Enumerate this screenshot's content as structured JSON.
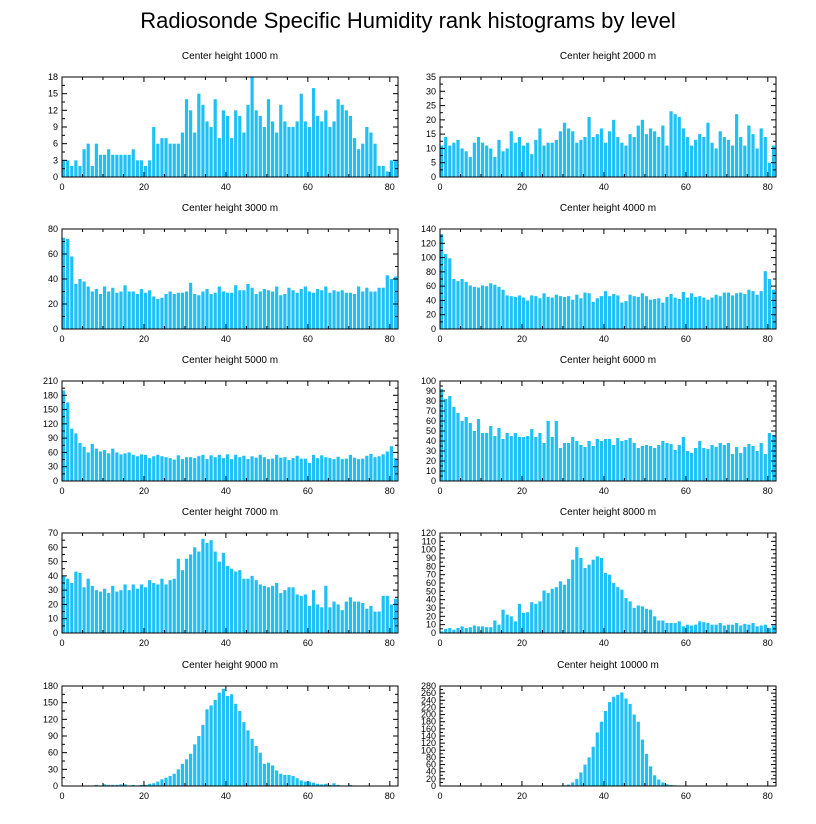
{
  "title": "Radiosonde Specific Humidity rank histograms by level",
  "style": {
    "bar_color": "#1ec0f6",
    "axis_color": "#000000"
  },
  "chart_data": [
    {
      "type": "bar",
      "title": "Center height 1000 m",
      "xlim": [
        0,
        82
      ],
      "ylim": [
        0,
        18
      ],
      "xticks": [
        0,
        20,
        40,
        60,
        80
      ],
      "yticks": [
        0,
        3,
        6,
        9,
        12,
        15,
        18
      ],
      "values": [
        3,
        3,
        2,
        3,
        2,
        5,
        6,
        2,
        6,
        4,
        4,
        5,
        4,
        4,
        4,
        4,
        4,
        5,
        3,
        3,
        2,
        3,
        9,
        6,
        7,
        7,
        6,
        6,
        6,
        8,
        14,
        12,
        8,
        15,
        13,
        10,
        9,
        14,
        7,
        12,
        11,
        7,
        12,
        11,
        8,
        13,
        18,
        12,
        11,
        9,
        14,
        10,
        8,
        13,
        10,
        9,
        9,
        10,
        15,
        10,
        9,
        16,
        11,
        10,
        12,
        9,
        10,
        14,
        13,
        12,
        11,
        7,
        5,
        6,
        9,
        8,
        6,
        2,
        2,
        1,
        3,
        3
      ]
    },
    {
      "type": "bar",
      "title": "Center height 2000 m",
      "xlim": [
        0,
        82
      ],
      "ylim": [
        0,
        35
      ],
      "xticks": [
        0,
        20,
        40,
        60,
        80
      ],
      "yticks": [
        0,
        5,
        10,
        15,
        20,
        25,
        30,
        35
      ],
      "values": [
        11,
        14,
        11,
        12,
        13,
        10,
        9,
        7,
        12,
        14,
        12,
        11,
        10,
        7,
        13,
        9,
        10,
        16,
        12,
        14,
        11,
        12,
        8,
        13,
        17,
        11,
        12,
        12,
        13,
        16,
        19,
        17,
        16,
        12,
        13,
        14,
        21,
        14,
        15,
        17,
        12,
        16,
        20,
        14,
        12,
        11,
        15,
        14,
        18,
        20,
        15,
        17,
        16,
        14,
        18,
        11,
        23,
        22,
        21,
        17,
        14,
        11,
        13,
        15,
        14,
        19,
        12,
        10,
        16,
        14,
        13,
        11,
        22,
        14,
        11,
        18,
        15,
        10,
        17,
        14,
        5,
        11
      ]
    },
    {
      "type": "bar",
      "title": "Center height 3000 m",
      "xlim": [
        0,
        82
      ],
      "ylim": [
        0,
        80
      ],
      "xticks": [
        0,
        20,
        40,
        60,
        80
      ],
      "yticks": [
        0,
        20,
        40,
        60,
        80
      ],
      "values": [
        73,
        72,
        58,
        36,
        40,
        38,
        34,
        30,
        32,
        28,
        34,
        30,
        33,
        29,
        30,
        35,
        30,
        30,
        28,
        32,
        29,
        31,
        26,
        24,
        25,
        28,
        30,
        28,
        29,
        29,
        30,
        37,
        28,
        27,
        30,
        32,
        28,
        29,
        34,
        30,
        29,
        29,
        35,
        31,
        31,
        36,
        33,
        28,
        30,
        32,
        31,
        30,
        34,
        27,
        28,
        33,
        31,
        29,
        32,
        34,
        30,
        29,
        32,
        31,
        34,
        29,
        31,
        30,
        31,
        29,
        29,
        28,
        34,
        30,
        33,
        30,
        30,
        33,
        33,
        43,
        40,
        42
      ]
    },
    {
      "type": "bar",
      "title": "Center height 4000 m",
      "xlim": [
        0,
        82
      ],
      "ylim": [
        0,
        140
      ],
      "xticks": [
        0,
        20,
        40,
        60,
        80
      ],
      "yticks": [
        0,
        20,
        40,
        60,
        80,
        100,
        120,
        140
      ],
      "values": [
        133,
        105,
        99,
        70,
        67,
        70,
        66,
        61,
        59,
        58,
        61,
        60,
        64,
        62,
        59,
        55,
        47,
        46,
        45,
        47,
        44,
        40,
        47,
        46,
        43,
        50,
        45,
        44,
        48,
        46,
        45,
        46,
        41,
        48,
        43,
        51,
        50,
        38,
        43,
        46,
        53,
        46,
        49,
        47,
        37,
        39,
        48,
        46,
        45,
        50,
        46,
        41,
        42,
        43,
        37,
        45,
        49,
        44,
        42,
        52,
        44,
        50,
        45,
        46,
        44,
        41,
        44,
        48,
        46,
        51,
        51,
        47,
        50,
        51,
        49,
        55,
        53,
        48,
        53,
        81,
        70,
        55
      ]
    },
    {
      "type": "bar",
      "title": "Center height 5000 m",
      "xlim": [
        0,
        82
      ],
      "ylim": [
        0,
        210
      ],
      "xticks": [
        0,
        20,
        40,
        60,
        80
      ],
      "yticks": [
        0,
        30,
        60,
        90,
        120,
        150,
        180,
        210
      ],
      "values": [
        190,
        165,
        110,
        100,
        80,
        72,
        60,
        78,
        68,
        62,
        65,
        58,
        68,
        60,
        56,
        58,
        60,
        55,
        52,
        56,
        55,
        48,
        52,
        55,
        52,
        50,
        48,
        45,
        54,
        46,
        50,
        50,
        48,
        52,
        55,
        46,
        54,
        50,
        55,
        48,
        56,
        46,
        55,
        50,
        53,
        46,
        52,
        49,
        55,
        50,
        46,
        47,
        55,
        49,
        50,
        44,
        48,
        53,
        47,
        47,
        38,
        55,
        48,
        54,
        50,
        48,
        46,
        51,
        46,
        47,
        55,
        49,
        46,
        47,
        53,
        57,
        50,
        52,
        56,
        62,
        73,
        48
      ]
    },
    {
      "type": "bar",
      "title": "Center height 6000 m",
      "xlim": [
        0,
        82
      ],
      "ylim": [
        0,
        100
      ],
      "xticks": [
        0,
        20,
        40,
        60,
        80
      ],
      "yticks": [
        0,
        10,
        20,
        30,
        40,
        50,
        60,
        70,
        80,
        90,
        100
      ],
      "values": [
        92,
        82,
        85,
        74,
        68,
        60,
        64,
        58,
        50,
        62,
        48,
        48,
        55,
        45,
        53,
        42,
        48,
        45,
        48,
        44,
        44,
        45,
        52,
        44,
        48,
        38,
        60,
        44,
        60,
        33,
        38,
        38,
        44,
        40,
        36,
        34,
        40,
        35,
        42,
        40,
        42,
        42,
        36,
        43,
        40,
        41,
        43,
        38,
        33,
        35,
        36,
        35,
        33,
        36,
        40,
        38,
        37,
        31,
        36,
        44,
        30,
        28,
        33,
        40,
        33,
        32,
        36,
        34,
        38,
        36,
        38,
        27,
        34,
        28,
        34,
        37,
        35,
        30,
        38,
        27,
        48,
        46
      ]
    },
    {
      "type": "bar",
      "title": "Center height 7000 m",
      "xlim": [
        0,
        82
      ],
      "ylim": [
        0,
        70
      ],
      "xticks": [
        0,
        20,
        40,
        60,
        80
      ],
      "yticks": [
        0,
        10,
        20,
        30,
        40,
        50,
        60,
        70
      ],
      "values": [
        40,
        38,
        35,
        43,
        42,
        32,
        38,
        33,
        30,
        29,
        31,
        28,
        33,
        29,
        30,
        34,
        30,
        34,
        31,
        34,
        32,
        37,
        35,
        34,
        38,
        34,
        37,
        38,
        52,
        44,
        52,
        55,
        60,
        57,
        66,
        63,
        65,
        57,
        50,
        56,
        47,
        45,
        43,
        44,
        38,
        38,
        40,
        37,
        34,
        33,
        32,
        33,
        35,
        28,
        30,
        32,
        32,
        27,
        26,
        27,
        19,
        30,
        20,
        18,
        33,
        18,
        22,
        20,
        16,
        22,
        25,
        22,
        22,
        21,
        17,
        19,
        15,
        15,
        26,
        26,
        20,
        24
      ]
    },
    {
      "type": "bar",
      "title": "Center height 8000 m",
      "xlim": [
        0,
        82
      ],
      "ylim": [
        0,
        120
      ],
      "xticks": [
        0,
        20,
        40,
        60,
        80
      ],
      "yticks": [
        0,
        10,
        20,
        30,
        40,
        50,
        60,
        70,
        80,
        90,
        100,
        110,
        120
      ],
      "values": [
        2,
        5,
        6,
        4,
        6,
        8,
        6,
        7,
        9,
        8,
        8,
        7,
        7,
        15,
        10,
        28,
        22,
        20,
        14,
        35,
        24,
        25,
        37,
        35,
        38,
        51,
        48,
        53,
        55,
        62,
        58,
        65,
        88,
        103,
        90,
        78,
        82,
        88,
        92,
        90,
        72,
        70,
        60,
        55,
        52,
        42,
        38,
        30,
        33,
        32,
        29,
        28,
        20,
        15,
        15,
        12,
        12,
        12,
        14,
        8,
        10,
        9,
        10,
        14,
        13,
        12,
        10,
        10,
        12,
        9,
        10,
        10,
        12,
        9,
        11,
        10,
        12,
        8,
        9,
        10,
        6,
        9
      ]
    },
    {
      "type": "bar",
      "title": "Center height 9000 m",
      "xlim": [
        0,
        82
      ],
      "ylim": [
        0,
        180
      ],
      "xticks": [
        0,
        20,
        40,
        60,
        80
      ],
      "yticks": [
        0,
        30,
        60,
        90,
        120,
        150,
        180
      ],
      "values": [
        0,
        0,
        0,
        0,
        0,
        0,
        0,
        0,
        2,
        1,
        3,
        2,
        2,
        2,
        3,
        3,
        1,
        2,
        1,
        2,
        2,
        4,
        5,
        8,
        12,
        15,
        18,
        22,
        30,
        40,
        48,
        58,
        75,
        90,
        110,
        138,
        145,
        155,
        168,
        175,
        162,
        165,
        148,
        135,
        115,
        100,
        85,
        72,
        60,
        40,
        42,
        37,
        28,
        22,
        20,
        20,
        18,
        14,
        10,
        8,
        8,
        6,
        4,
        3,
        4,
        2,
        5,
        2,
        1,
        1,
        2,
        1,
        0,
        0,
        1,
        0,
        0,
        0,
        0,
        0,
        0,
        0
      ]
    },
    {
      "type": "bar",
      "title": "Center height 10000 m",
      "xlim": [
        0,
        82
      ],
      "ylim": [
        0,
        280
      ],
      "xticks": [
        0,
        20,
        40,
        60,
        80
      ],
      "yticks": [
        0,
        20,
        40,
        60,
        80,
        100,
        120,
        140,
        160,
        180,
        200,
        220,
        240,
        260,
        280
      ],
      "values": [
        0,
        0,
        0,
        0,
        0,
        0,
        0,
        0,
        0,
        0,
        0,
        0,
        0,
        0,
        0,
        0,
        0,
        0,
        0,
        0,
        0,
        0,
        0,
        0,
        0,
        0,
        0,
        0,
        0,
        1,
        2,
        4,
        10,
        20,
        38,
        60,
        80,
        110,
        150,
        180,
        210,
        235,
        250,
        255,
        262,
        245,
        230,
        200,
        180,
        130,
        90,
        55,
        30,
        18,
        10,
        5,
        3,
        2,
        1,
        1,
        1,
        0,
        0,
        0,
        0,
        0,
        0,
        0,
        0,
        0,
        0,
        0,
        0,
        0,
        0,
        0,
        0,
        0,
        0,
        0,
        0,
        0
      ]
    }
  ]
}
